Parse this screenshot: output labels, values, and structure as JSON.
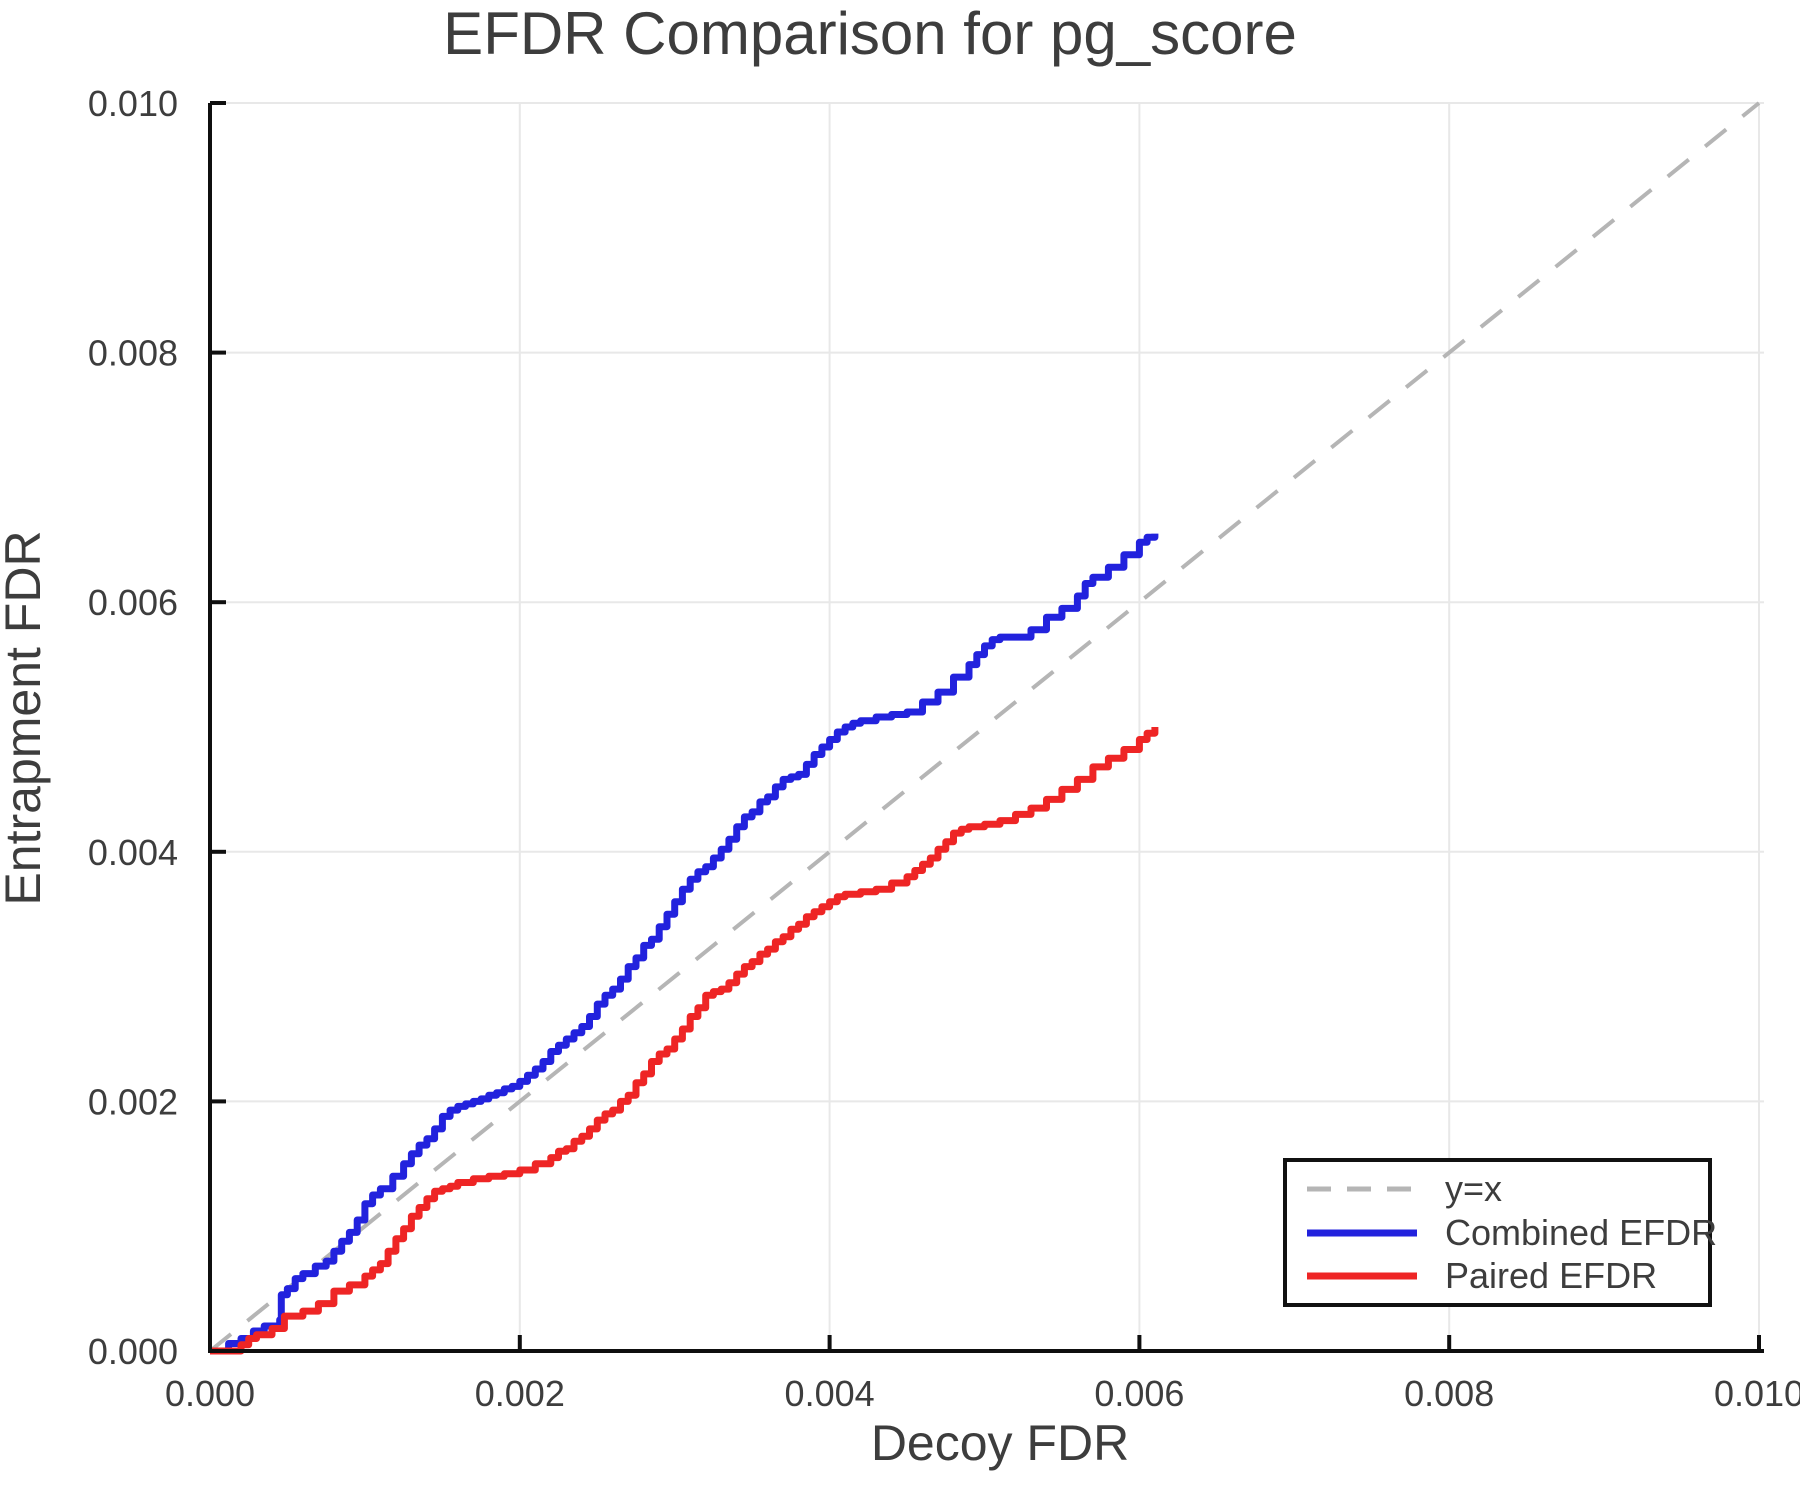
{
  "title": "EFDR Comparison for pg_score",
  "axes": {
    "xlabel": "Decoy FDR",
    "ylabel": "Entrapment FDR",
    "x_ticks": [
      {
        "value": 0.0,
        "label": "0.000"
      },
      {
        "value": 0.002,
        "label": "0.002"
      },
      {
        "value": 0.004,
        "label": "0.004"
      },
      {
        "value": 0.006,
        "label": "0.006"
      },
      {
        "value": 0.008,
        "label": "0.008"
      },
      {
        "value": 0.01,
        "label": "0.010"
      }
    ],
    "y_ticks": [
      {
        "value": 0.0,
        "label": "0.000"
      },
      {
        "value": 0.002,
        "label": "0.002"
      },
      {
        "value": 0.004,
        "label": "0.004"
      },
      {
        "value": 0.006,
        "label": "0.006"
      },
      {
        "value": 0.008,
        "label": "0.008"
      },
      {
        "value": 0.01,
        "label": "0.010"
      }
    ]
  },
  "colors": {
    "identity_line": "#b5b5b5",
    "combined": "#2222dd",
    "paired": "#ee2525",
    "grid": "#e8e8e8",
    "spine": "#0f0f0f",
    "text": "#3d3d3d"
  },
  "legend": {
    "items": [
      {
        "label": "y=x",
        "style": "dashed",
        "color": "#b5b5b5"
      },
      {
        "label": "Combined EFDR",
        "style": "solid",
        "color": "#2222dd"
      },
      {
        "label": "Paired EFDR",
        "style": "solid",
        "color": "#ee2525"
      }
    ]
  },
  "chart_data": {
    "type": "line",
    "title": "EFDR Comparison for pg_score",
    "xlabel": "Decoy FDR",
    "ylabel": "Entrapment FDR",
    "xlim": [
      0.0,
      0.01
    ],
    "ylim": [
      0.0,
      0.01
    ],
    "grid": true,
    "legend_position": "bottom-right",
    "series": [
      {
        "name": "y=x",
        "color": "#b5b5b5",
        "dash": true,
        "step": false,
        "points": [
          [
            0.0,
            0.0
          ],
          [
            0.01,
            0.01
          ]
        ]
      },
      {
        "name": "Combined EFDR",
        "color": "#2222dd",
        "dash": false,
        "step": true,
        "points": [
          [
            0,
            0
          ],
          [
            0.00012,
            6e-05
          ],
          [
            0.0002,
            0.0001
          ],
          [
            0.00028,
            0.00016
          ],
          [
            0.00035,
            0.0002
          ],
          [
            0.00045,
            0.00025
          ],
          [
            0.00046,
            0.00045
          ],
          [
            0.0005,
            0.0005
          ],
          [
            0.00055,
            0.00058
          ],
          [
            0.0006,
            0.00062
          ],
          [
            0.00068,
            0.00068
          ],
          [
            0.00075,
            0.00072
          ],
          [
            0.0008,
            0.0008
          ],
          [
            0.00085,
            0.00088
          ],
          [
            0.0009,
            0.00095
          ],
          [
            0.00095,
            0.00105
          ],
          [
            0.001,
            0.00118
          ],
          [
            0.00105,
            0.00125
          ],
          [
            0.0011,
            0.0013
          ],
          [
            0.00118,
            0.0014
          ],
          [
            0.00125,
            0.0015
          ],
          [
            0.0013,
            0.00158
          ],
          [
            0.00135,
            0.00165
          ],
          [
            0.0014,
            0.0017
          ],
          [
            0.00145,
            0.00178
          ],
          [
            0.0015,
            0.00188
          ],
          [
            0.00155,
            0.00193
          ],
          [
            0.0016,
            0.00196
          ],
          [
            0.00165,
            0.00198
          ],
          [
            0.0017,
            0.002
          ],
          [
            0.00175,
            0.00202
          ],
          [
            0.0018,
            0.00205
          ],
          [
            0.00185,
            0.00207
          ],
          [
            0.0019,
            0.0021
          ],
          [
            0.00195,
            0.00212
          ],
          [
            0.002,
            0.00216
          ],
          [
            0.00205,
            0.00221
          ],
          [
            0.0021,
            0.00226
          ],
          [
            0.00215,
            0.00232
          ],
          [
            0.0022,
            0.0024
          ],
          [
            0.00225,
            0.00245
          ],
          [
            0.0023,
            0.0025
          ],
          [
            0.00235,
            0.00255
          ],
          [
            0.0024,
            0.0026
          ],
          [
            0.00245,
            0.00268
          ],
          [
            0.0025,
            0.00278
          ],
          [
            0.00255,
            0.00285
          ],
          [
            0.0026,
            0.0029
          ],
          [
            0.00265,
            0.00298
          ],
          [
            0.0027,
            0.00308
          ],
          [
            0.00275,
            0.00315
          ],
          [
            0.0028,
            0.00325
          ],
          [
            0.00285,
            0.0033
          ],
          [
            0.0029,
            0.0034
          ],
          [
            0.00295,
            0.0035
          ],
          [
            0.003,
            0.0036
          ],
          [
            0.00305,
            0.0037
          ],
          [
            0.0031,
            0.00378
          ],
          [
            0.00315,
            0.00384
          ],
          [
            0.0032,
            0.00388
          ],
          [
            0.00325,
            0.00395
          ],
          [
            0.0033,
            0.00402
          ],
          [
            0.00335,
            0.0041
          ],
          [
            0.0034,
            0.0042
          ],
          [
            0.00345,
            0.00428
          ],
          [
            0.0035,
            0.00432
          ],
          [
            0.00355,
            0.0044
          ],
          [
            0.0036,
            0.00444
          ],
          [
            0.00365,
            0.00452
          ],
          [
            0.0037,
            0.00458
          ],
          [
            0.00375,
            0.0046
          ],
          [
            0.0038,
            0.00462
          ],
          [
            0.00385,
            0.0047
          ],
          [
            0.0039,
            0.00478
          ],
          [
            0.00395,
            0.00484
          ],
          [
            0.004,
            0.0049
          ],
          [
            0.00405,
            0.00496
          ],
          [
            0.0041,
            0.005
          ],
          [
            0.00415,
            0.00503
          ],
          [
            0.0042,
            0.00505
          ],
          [
            0.0043,
            0.00508
          ],
          [
            0.0044,
            0.0051
          ],
          [
            0.0045,
            0.00512
          ],
          [
            0.0046,
            0.0052
          ],
          [
            0.0047,
            0.00528
          ],
          [
            0.0048,
            0.0054
          ],
          [
            0.0049,
            0.0055
          ],
          [
            0.00495,
            0.00558
          ],
          [
            0.005,
            0.00565
          ],
          [
            0.00505,
            0.0057
          ],
          [
            0.0051,
            0.00572
          ],
          [
            0.0052,
            0.00572
          ],
          [
            0.0053,
            0.00578
          ],
          [
            0.0054,
            0.00588
          ],
          [
            0.0055,
            0.00595
          ],
          [
            0.0056,
            0.00605
          ],
          [
            0.00565,
            0.00615
          ],
          [
            0.0057,
            0.0062
          ],
          [
            0.0058,
            0.00628
          ],
          [
            0.0059,
            0.00638
          ],
          [
            0.006,
            0.00648
          ],
          [
            0.00605,
            0.00652
          ],
          [
            0.0061,
            0.00655
          ]
        ]
      },
      {
        "name": "Paired EFDR",
        "color": "#ee2525",
        "dash": false,
        "step": true,
        "points": [
          [
            0,
            0
          ],
          [
            0.0002,
            5e-05
          ],
          [
            0.00025,
            0.0001
          ],
          [
            0.0003,
            0.00013
          ],
          [
            0.0004,
            0.00018
          ],
          [
            0.00048,
            0.00028
          ],
          [
            0.0006,
            0.00032
          ],
          [
            0.0007,
            0.00038
          ],
          [
            0.0008,
            0.00048
          ],
          [
            0.0009,
            0.00053
          ],
          [
            0.001,
            0.0006
          ],
          [
            0.00105,
            0.00065
          ],
          [
            0.0011,
            0.0007
          ],
          [
            0.00115,
            0.0008
          ],
          [
            0.0012,
            0.0009
          ],
          [
            0.00125,
            0.00098
          ],
          [
            0.0013,
            0.00108
          ],
          [
            0.00135,
            0.00115
          ],
          [
            0.0014,
            0.00122
          ],
          [
            0.00145,
            0.00128
          ],
          [
            0.0015,
            0.0013
          ],
          [
            0.00155,
            0.00132
          ],
          [
            0.0016,
            0.00135
          ],
          [
            0.0017,
            0.00138
          ],
          [
            0.0018,
            0.0014
          ],
          [
            0.0019,
            0.00142
          ],
          [
            0.002,
            0.00145
          ],
          [
            0.0021,
            0.0015
          ],
          [
            0.0022,
            0.00155
          ],
          [
            0.00225,
            0.0016
          ],
          [
            0.0023,
            0.00162
          ],
          [
            0.00235,
            0.00168
          ],
          [
            0.0024,
            0.00172
          ],
          [
            0.00245,
            0.00178
          ],
          [
            0.0025,
            0.00185
          ],
          [
            0.00255,
            0.0019
          ],
          [
            0.0026,
            0.00193
          ],
          [
            0.00265,
            0.002
          ],
          [
            0.0027,
            0.00205
          ],
          [
            0.00275,
            0.00215
          ],
          [
            0.0028,
            0.00222
          ],
          [
            0.00285,
            0.00232
          ],
          [
            0.0029,
            0.00238
          ],
          [
            0.00295,
            0.00242
          ],
          [
            0.003,
            0.0025
          ],
          [
            0.00305,
            0.00258
          ],
          [
            0.0031,
            0.00268
          ],
          [
            0.00315,
            0.00275
          ],
          [
            0.0032,
            0.00285
          ],
          [
            0.00325,
            0.00288
          ],
          [
            0.0033,
            0.0029
          ],
          [
            0.00335,
            0.00295
          ],
          [
            0.0034,
            0.00302
          ],
          [
            0.00345,
            0.00308
          ],
          [
            0.0035,
            0.00312
          ],
          [
            0.00355,
            0.00318
          ],
          [
            0.0036,
            0.00322
          ],
          [
            0.00365,
            0.00328
          ],
          [
            0.0037,
            0.00332
          ],
          [
            0.00375,
            0.00338
          ],
          [
            0.0038,
            0.00342
          ],
          [
            0.00385,
            0.00348
          ],
          [
            0.0039,
            0.00352
          ],
          [
            0.00395,
            0.00356
          ],
          [
            0.004,
            0.0036
          ],
          [
            0.00405,
            0.00364
          ],
          [
            0.0041,
            0.00366
          ],
          [
            0.0042,
            0.00368
          ],
          [
            0.0043,
            0.0037
          ],
          [
            0.0044,
            0.00375
          ],
          [
            0.0045,
            0.0038
          ],
          [
            0.00455,
            0.00385
          ],
          [
            0.0046,
            0.0039
          ],
          [
            0.00465,
            0.00395
          ],
          [
            0.0047,
            0.00402
          ],
          [
            0.00475,
            0.00408
          ],
          [
            0.0048,
            0.00415
          ],
          [
            0.00485,
            0.00418
          ],
          [
            0.0049,
            0.0042
          ],
          [
            0.005,
            0.00422
          ],
          [
            0.0051,
            0.00425
          ],
          [
            0.0052,
            0.0043
          ],
          [
            0.0053,
            0.00435
          ],
          [
            0.0054,
            0.00442
          ],
          [
            0.0055,
            0.0045
          ],
          [
            0.0056,
            0.00458
          ],
          [
            0.0057,
            0.00468
          ],
          [
            0.0058,
            0.00475
          ],
          [
            0.0059,
            0.00482
          ],
          [
            0.006,
            0.0049
          ],
          [
            0.00605,
            0.00495
          ],
          [
            0.0061,
            0.005
          ]
        ]
      }
    ]
  }
}
